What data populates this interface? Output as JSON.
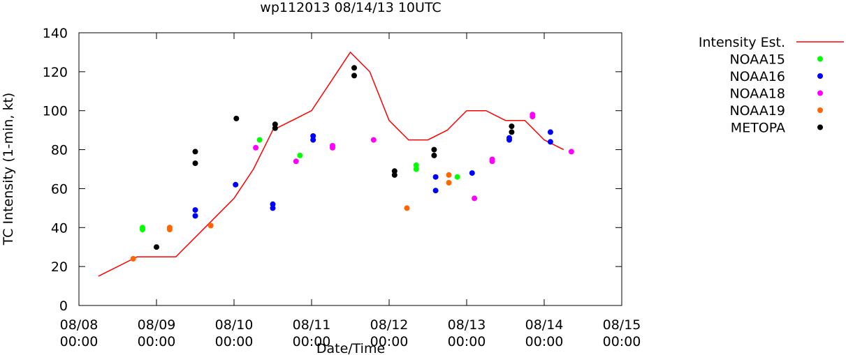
{
  "chart_data": {
    "type": "scatter",
    "title": "wp112013 08/14/13 10UTC",
    "xlabel": "Date/Time",
    "ylabel": "TC Intensity (1-min, kt)",
    "xlim": [
      0,
      7
    ],
    "ylim": [
      0,
      140
    ],
    "x_unit": "days since 08/08 00:00",
    "x_ticks": [
      {
        "value": 0,
        "date": "08/08",
        "time": "00:00"
      },
      {
        "value": 1,
        "date": "08/09",
        "time": "00:00"
      },
      {
        "value": 2,
        "date": "08/10",
        "time": "00:00"
      },
      {
        "value": 3,
        "date": "08/11",
        "time": "00:00"
      },
      {
        "value": 4,
        "date": "08/12",
        "time": "00:00"
      },
      {
        "value": 5,
        "date": "08/13",
        "time": "00:00"
      },
      {
        "value": 6,
        "date": "08/14",
        "time": "00:00"
      },
      {
        "value": 7,
        "date": "08/15",
        "time": "00:00"
      }
    ],
    "y_ticks": [
      0,
      20,
      40,
      60,
      80,
      100,
      120,
      140
    ],
    "grid": false,
    "legend_position": "outside-right",
    "line_series": {
      "name": "Intensity Est.",
      "color": "#ff0000",
      "points": [
        [
          0.25,
          15
        ],
        [
          0.75,
          25
        ],
        [
          1.0,
          25
        ],
        [
          1.25,
          25
        ],
        [
          1.5,
          35
        ],
        [
          1.75,
          45
        ],
        [
          2.0,
          55
        ],
        [
          2.25,
          70
        ],
        [
          2.5,
          90
        ],
        [
          2.75,
          95
        ],
        [
          3.0,
          100
        ],
        [
          3.25,
          115
        ],
        [
          3.5,
          130
        ],
        [
          3.75,
          120
        ],
        [
          4.0,
          95
        ],
        [
          4.25,
          85
        ],
        [
          4.5,
          85
        ],
        [
          4.75,
          90
        ],
        [
          5.0,
          100
        ],
        [
          5.25,
          100
        ],
        [
          5.5,
          95
        ],
        [
          5.75,
          95
        ],
        [
          6.0,
          85
        ],
        [
          6.25,
          80
        ]
      ]
    },
    "series": [
      {
        "name": "NOAA15",
        "color": "#00ff00",
        "points": [
          [
            0.82,
            40
          ],
          [
            0.82,
            39
          ],
          [
            2.33,
            85
          ],
          [
            2.85,
            77
          ],
          [
            4.35,
            72
          ],
          [
            4.35,
            70
          ],
          [
            4.88,
            66
          ]
        ]
      },
      {
        "name": "NOAA16",
        "color": "#0000ff",
        "points": [
          [
            1.5,
            49
          ],
          [
            1.5,
            46
          ],
          [
            2.02,
            62
          ],
          [
            2.5,
            52
          ],
          [
            2.5,
            50
          ],
          [
            3.02,
            87
          ],
          [
            3.02,
            85
          ],
          [
            4.6,
            66
          ],
          [
            4.6,
            59
          ],
          [
            5.07,
            68
          ],
          [
            5.55,
            86
          ],
          [
            5.55,
            85
          ],
          [
            6.08,
            89
          ],
          [
            6.08,
            84
          ]
        ]
      },
      {
        "name": "NOAA18",
        "color": "#ff00ff",
        "points": [
          [
            2.28,
            81
          ],
          [
            2.8,
            74
          ],
          [
            3.27,
            82
          ],
          [
            3.27,
            81
          ],
          [
            3.8,
            85
          ],
          [
            5.1,
            55
          ],
          [
            5.33,
            75
          ],
          [
            5.33,
            74
          ],
          [
            5.85,
            98
          ],
          [
            5.85,
            97
          ],
          [
            6.35,
            79
          ]
        ]
      },
      {
        "name": "NOAA19",
        "color": "#ff6600",
        "points": [
          [
            0.7,
            24
          ],
          [
            1.17,
            40
          ],
          [
            1.17,
            39
          ],
          [
            1.7,
            41
          ],
          [
            4.23,
            50
          ],
          [
            4.77,
            67
          ],
          [
            4.77,
            63
          ]
        ]
      },
      {
        "name": "METOPA",
        "color": "#000000",
        "points": [
          [
            1.0,
            30
          ],
          [
            1.5,
            79
          ],
          [
            1.5,
            73
          ],
          [
            2.03,
            96
          ],
          [
            2.53,
            93
          ],
          [
            2.53,
            91
          ],
          [
            3.55,
            122
          ],
          [
            3.55,
            118
          ],
          [
            4.07,
            69
          ],
          [
            4.07,
            67
          ],
          [
            4.58,
            80
          ],
          [
            4.58,
            77
          ],
          [
            5.58,
            92
          ],
          [
            5.58,
            89
          ]
        ]
      }
    ]
  }
}
